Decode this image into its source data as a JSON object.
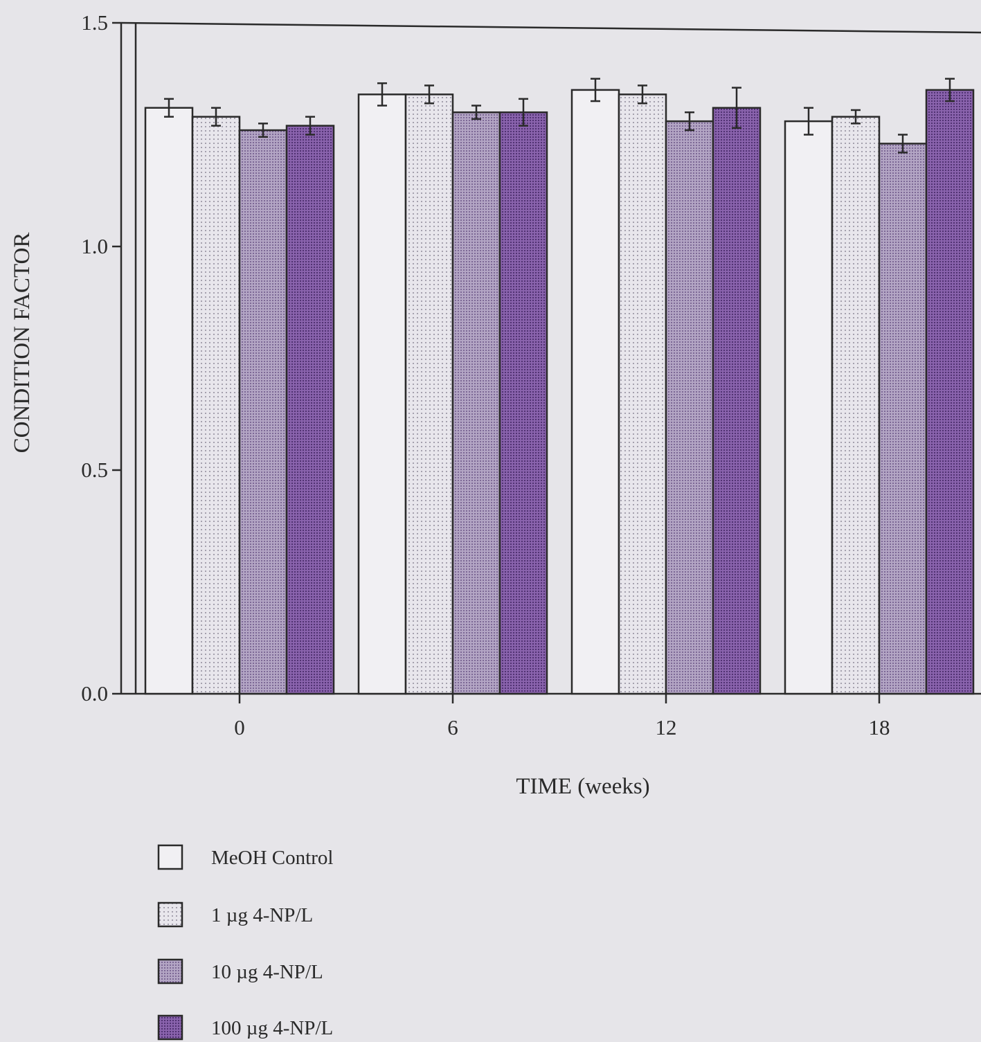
{
  "chart_data": {
    "type": "bar",
    "xlabel": "TIME (weeks)",
    "ylabel": "CONDITION FACTOR",
    "ylim": [
      0.0,
      1.5
    ],
    "yticks": [
      "0.0",
      "0.5",
      "1.0",
      "1.5"
    ],
    "categories": [
      "0",
      "6",
      "12",
      "18"
    ],
    "series": [
      {
        "name": "MeOH Control",
        "values": [
          1.31,
          1.34,
          1.35,
          1.28
        ],
        "errors": [
          0.02,
          0.025,
          0.025,
          0.03
        ],
        "fill": "#f1f0f3"
      },
      {
        "name": "1 µg 4-NP/L",
        "values": [
          1.29,
          1.34,
          1.34,
          1.29
        ],
        "errors": [
          0.02,
          0.02,
          0.02,
          0.015
        ],
        "fill": "#d9d5df"
      },
      {
        "name": "10 µg 4-NP/L",
        "values": [
          1.26,
          1.3,
          1.28,
          1.23
        ],
        "errors": [
          0.015,
          0.015,
          0.02,
          0.02
        ],
        "fill": "#9f8cb3"
      },
      {
        "name": "100 µg 4-NP/L",
        "values": [
          1.27,
          1.3,
          1.31,
          1.35
        ],
        "errors": [
          0.02,
          0.03,
          0.045,
          0.025
        ],
        "fill": "#7a52a0"
      }
    ],
    "legend_position": "bottom-left",
    "grid": false
  }
}
